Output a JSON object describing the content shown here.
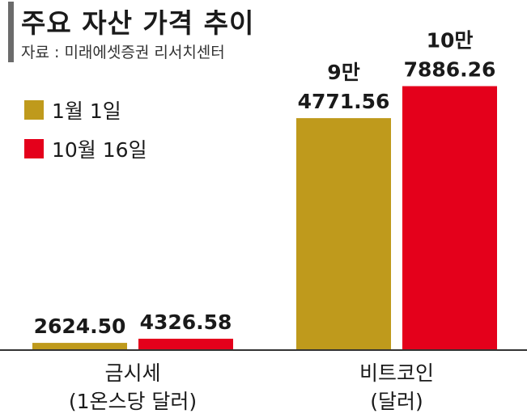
{
  "title": "주요 자산 가격 추이",
  "source": "자료 : 미래에셋증권 리서치센터",
  "colors": {
    "series1": "#bf9a1c",
    "series2": "#e4001b",
    "axis": "#333333"
  },
  "chart_data": {
    "type": "bar",
    "title": "주요 자산 가격 추이",
    "series": [
      {
        "name": "1월 1일",
        "values": [
          2624.5,
          94771.56
        ],
        "labels": [
          "2624.50",
          "9만|4771.56"
        ]
      },
      {
        "name": "10월 16일",
        "values": [
          4326.58,
          107886.26
        ],
        "labels": [
          "4326.58",
          "10만|7886.26"
        ]
      }
    ],
    "categories": [
      {
        "line1": "금시세",
        "line2": "(1온스당 달러)"
      },
      {
        "line1": "비트코인",
        "line2": "(달러)"
      }
    ],
    "ylim": [
      0,
      120000
    ],
    "legend_position": "top-left",
    "grid": false
  }
}
